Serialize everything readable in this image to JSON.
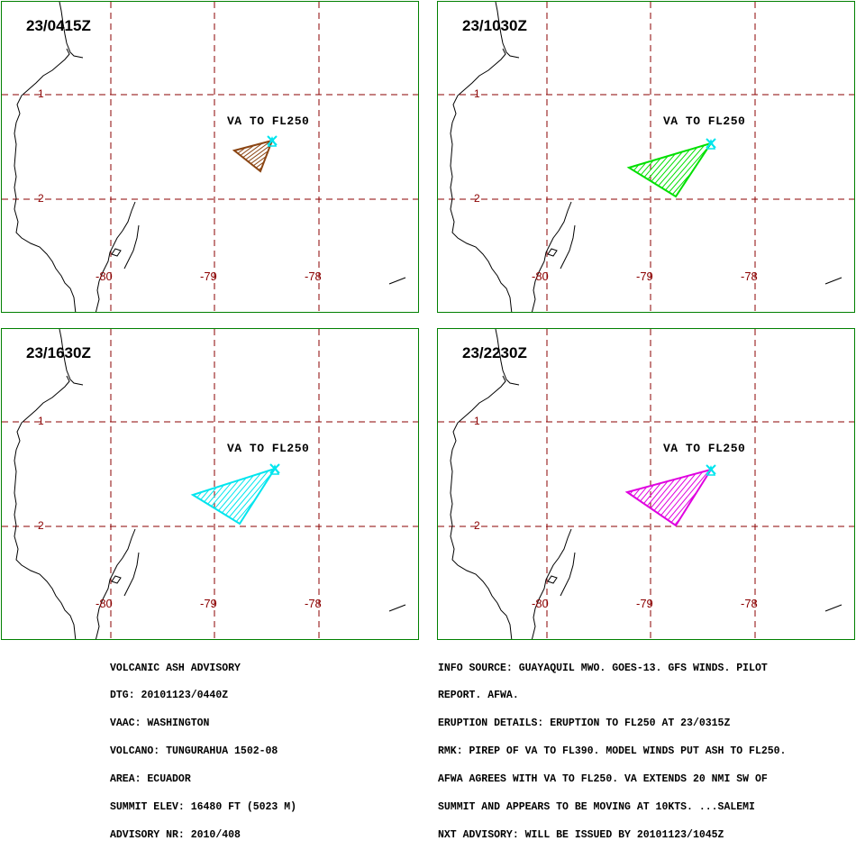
{
  "panels": [
    {
      "time": "23/0415Z",
      "ash_label": "VA TO FL250",
      "ash_color": "#8b4513"
    },
    {
      "time": "23/1030Z",
      "ash_label": "VA TO FL250",
      "ash_color": "#00e000"
    },
    {
      "time": "23/1630Z",
      "ash_label": "VA TO FL250",
      "ash_color": "#00e5ee"
    },
    {
      "time": "23/2230Z",
      "ash_label": "VA TO FL250",
      "ash_color": "#e000e0"
    }
  ],
  "axis_labels": {
    "lat": [
      "-1",
      "-2"
    ],
    "lon": [
      "-80",
      "-79",
      "-78"
    ]
  },
  "colors": {
    "grid": "#8b0000",
    "border": "#008000",
    "coast": "#000000",
    "volcano_marker": "#00e5ee"
  },
  "advisory_left": [
    "VOLCANIC ASH ADVISORY",
    "DTG: 20101123/0440Z",
    "VAAC: WASHINGTON",
    "VOLCANO: TUNGURAHUA 1502-08",
    "AREA: ECUADOR",
    "SUMMIT ELEV: 16480 FT (5023 M)",
    "ADVISORY NR: 2010/408"
  ],
  "advisory_right": [
    "INFO SOURCE: GUAYAQUIL MWO. GOES-13. GFS WINDS. PILOT",
    "REPORT. AFWA.",
    "ERUPTION DETAILS: ERUPTION TO FL250 AT 23/0315Z",
    "RMK: PIREP OF VA TO FL390. MODEL WINDS PUT ASH TO FL250.",
    "AFWA AGREES WITH VA TO FL250. VA EXTENDS 20 NMI SW OF",
    "SUMMIT AND APPEARS TO BE MOVING AT 10KTS. ...SALEMI",
    "NXT ADVISORY: WILL BE ISSUED BY 20101123/1045Z"
  ]
}
